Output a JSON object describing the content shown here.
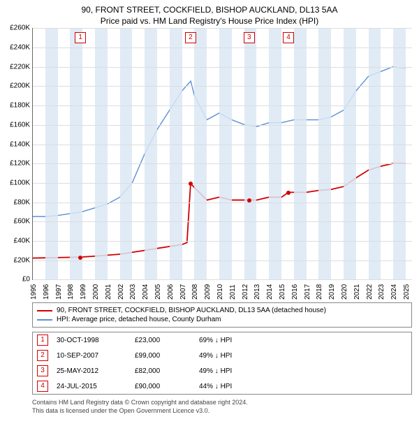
{
  "title_line1": "90, FRONT STREET, COCKFIELD, BISHOP AUCKLAND, DL13 5AA",
  "title_line2": "Price paid vs. HM Land Registry's House Price Index (HPI)",
  "chart": {
    "type": "line",
    "background_color": "#ffffff",
    "grid_color": "#dddddd",
    "axis_color": "#666666",
    "x_min": 1995,
    "x_max": 2025.5,
    "x_tick_step": 1,
    "y_min": 0,
    "y_max": 260000,
    "y_tick_step": 20000,
    "y_prefix": "£",
    "y_suffix": "K",
    "alt_band_color": "#dbe7f5",
    "series": [
      {
        "name": "hpi",
        "label": "HPI: Average price, detached house, County Durham",
        "color": "#5b8fd6",
        "line_width": 1.4,
        "points": [
          [
            1995,
            65000
          ],
          [
            1996,
            65000
          ],
          [
            1997,
            66000
          ],
          [
            1998,
            68000
          ],
          [
            1999,
            70000
          ],
          [
            2000,
            74000
          ],
          [
            2001,
            78000
          ],
          [
            2002,
            85000
          ],
          [
            2003,
            100000
          ],
          [
            2004,
            130000
          ],
          [
            2005,
            155000
          ],
          [
            2006,
            175000
          ],
          [
            2007,
            195000
          ],
          [
            2007.7,
            205000
          ],
          [
            2008,
            190000
          ],
          [
            2009,
            165000
          ],
          [
            2010,
            172000
          ],
          [
            2011,
            165000
          ],
          [
            2012,
            160000
          ],
          [
            2013,
            158000
          ],
          [
            2014,
            162000
          ],
          [
            2015,
            162000
          ],
          [
            2016,
            165000
          ],
          [
            2017,
            165000
          ],
          [
            2018,
            165000
          ],
          [
            2019,
            168000
          ],
          [
            2020,
            175000
          ],
          [
            2021,
            195000
          ],
          [
            2022,
            210000
          ],
          [
            2023,
            215000
          ],
          [
            2024,
            220000
          ],
          [
            2025,
            218000
          ]
        ]
      },
      {
        "name": "price_paid",
        "label": "90, FRONT STREET, COCKFIELD, BISHOP AUCKLAND, DL13 5AA (detached house)",
        "color": "#d00000",
        "line_width": 1.8,
        "points": [
          [
            1995,
            22000
          ],
          [
            1998.83,
            23000
          ],
          [
            2000,
            24000
          ],
          [
            2002,
            26000
          ],
          [
            2004,
            30000
          ],
          [
            2005,
            32000
          ],
          [
            2006,
            34000
          ],
          [
            2007,
            36000
          ],
          [
            2007.4,
            38000
          ],
          [
            2007.69,
            99000
          ],
          [
            2008,
            95000
          ],
          [
            2009,
            82000
          ],
          [
            2010,
            85000
          ],
          [
            2011,
            82000
          ],
          [
            2012.4,
            82000
          ],
          [
            2013,
            82000
          ],
          [
            2014,
            85000
          ],
          [
            2015,
            85000
          ],
          [
            2015.56,
            90000
          ],
          [
            2016,
            90000
          ],
          [
            2017,
            90000
          ],
          [
            2018,
            92000
          ],
          [
            2019,
            93000
          ],
          [
            2020,
            96000
          ],
          [
            2021,
            105000
          ],
          [
            2022,
            113000
          ],
          [
            2023,
            117000
          ],
          [
            2024,
            120000
          ],
          [
            2025,
            120000
          ]
        ],
        "markers": [
          {
            "x": 1998.83,
            "y": 23000
          },
          {
            "x": 2007.69,
            "y": 99000
          },
          {
            "x": 2012.4,
            "y": 82000
          },
          {
            "x": 2015.56,
            "y": 90000
          }
        ]
      }
    ],
    "event_markers": [
      {
        "n": "1",
        "x": 1998.83
      },
      {
        "n": "2",
        "x": 2007.69
      },
      {
        "n": "3",
        "x": 2012.4
      },
      {
        "n": "4",
        "x": 2015.56
      }
    ]
  },
  "legend": [
    {
      "color": "#d00000",
      "label": "90, FRONT STREET, COCKFIELD, BISHOP AUCKLAND, DL13 5AA (detached house)"
    },
    {
      "color": "#5b8fd6",
      "label": "HPI: Average price, detached house, County Durham"
    }
  ],
  "events": [
    {
      "n": "1",
      "date": "30-OCT-1998",
      "price": "£23,000",
      "delta": "69% ↓ HPI"
    },
    {
      "n": "2",
      "date": "10-SEP-2007",
      "price": "£99,000",
      "delta": "49% ↓ HPI"
    },
    {
      "n": "3",
      "date": "25-MAY-2012",
      "price": "£82,000",
      "delta": "49% ↓ HPI"
    },
    {
      "n": "4",
      "date": "24-JUL-2015",
      "price": "£90,000",
      "delta": "44% ↓ HPI"
    }
  ],
  "footer_line1": "Contains HM Land Registry data © Crown copyright and database right 2024.",
  "footer_line2": "This data is licensed under the Open Government Licence v3.0."
}
